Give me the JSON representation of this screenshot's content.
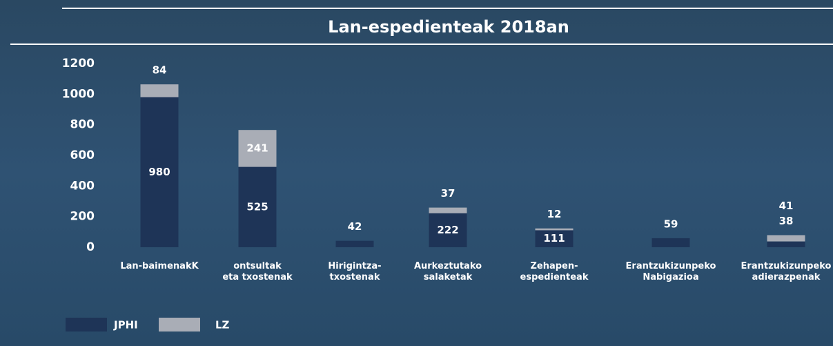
{
  "chart_data": {
    "type": "stacked-bar",
    "title": "Lan-espedienteak 2018an",
    "categories": [
      [
        "Lan-baimenakK"
      ],
      [
        "ontsultak",
        "eta txostenak"
      ],
      [
        "Hirigintza-",
        "txostenak"
      ],
      [
        "Aurkeztutako",
        "salaketak"
      ],
      [
        "Zehapen-",
        "espedienteak"
      ],
      [
        "Erantzukizunpeko",
        "Nabigazioa"
      ],
      [
        "Erantzukizunpeko",
        "adierazpenak"
      ]
    ],
    "series": [
      {
        "name": "JPHI",
        "color": "#1e3457",
        "values": [
          980,
          525,
          42,
          222,
          111,
          59,
          38
        ]
      },
      {
        "name": "LZ",
        "color": "#a9adb6",
        "values": [
          84,
          241,
          null,
          37,
          12,
          null,
          41
        ]
      }
    ],
    "ylim": [
      0,
      1200
    ],
    "yticks": [
      0,
      200,
      400,
      600,
      800,
      1000,
      1200
    ],
    "legend": "bottom-left"
  }
}
